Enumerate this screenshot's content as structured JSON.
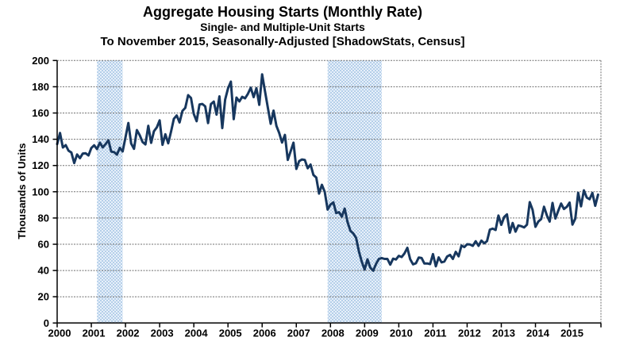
{
  "chart_data": {
    "type": "line",
    "title": "Aggregate Housing Starts (Monthly Rate)",
    "subtitle": "Single- and Multiple-Unit Starts",
    "period_note": "To November 2015, Seasonally-Adjusted [ShadowStats, Census]",
    "ylabel": "Thousands of Units",
    "ylim": [
      0,
      200
    ],
    "y_ticks": [
      0,
      20,
      40,
      60,
      80,
      100,
      120,
      140,
      160,
      180,
      200
    ],
    "x_tick_labels": [
      "2000",
      "2001",
      "2002",
      "2003",
      "2004",
      "2005",
      "2006",
      "2007",
      "2008",
      "2009",
      "2010",
      "2011",
      "2012",
      "2013",
      "2014",
      "2015"
    ],
    "frequency": "monthly",
    "x_start": "2000-01",
    "x_end": "2015-11",
    "grid": "horizontal-dotted",
    "legend": "none",
    "series": [
      {
        "name": "Aggregate Housing Starts (thousands of units, monthly rate)",
        "values": [
          136.3,
          144.8,
          133.7,
          135.5,
          131.3,
          129.9,
          121.9,
          128.4,
          125.6,
          129.1,
          129.3,
          127.7,
          133.3,
          135.4,
          132.5,
          137.4,
          133.8,
          136.3,
          139.2,
          130.6,
          130.2,
          128.3,
          133.5,
          130.7,
          141.5,
          152.4,
          136.8,
          132.7,
          147.0,
          143.1,
          137.9,
          136.1,
          150.3,
          137.3,
          146.1,
          149.0,
          154.4,
          135.8,
          143.8,
          136.9,
          145.9,
          155.6,
          158.1,
          152.8,
          161.6,
          163.9,
          173.6,
          171.4,
          159.3,
          153.8,
          166.5,
          166.9,
          165.1,
          152.3,
          166.8,
          168.7,
          158.8,
          172.7,
          148.5,
          170.2,
          178.7,
          183.9,
          155.3,
          171.8,
          168.8,
          172.3,
          171.2,
          174.6,
          179.3,
          172.1,
          178.9,
          166.2,
          189.4,
          176.6,
          164.1,
          151.8,
          161.8,
          150.2,
          144.8,
          137.5,
          143.3,
          124.3,
          130.8,
          137.4,
          117.4,
          123.3,
          124.6,
          124.2,
          117.9,
          120.7,
          112.8,
          110.8,
          98.6,
          105.3,
          99.8,
          86.4,
          90.3,
          91.9,
          83.8,
          84.4,
          81.1,
          87.2,
          76.9,
          70.3,
          68.3,
          64.8,
          54.3,
          46.7,
          40.8,
          48.5,
          42.1,
          39.8,
          45.0,
          48.8,
          49.5,
          48.8,
          48.8,
          44.5,
          49.0,
          48.4,
          51.2,
          50.3,
          53.0,
          57.3,
          48.6,
          44.7,
          45.5,
          49.9,
          49.5,
          45.3,
          45.4,
          44.9,
          52.5,
          43.2,
          50.0,
          46.2,
          46.8,
          50.7,
          51.9,
          48.8,
          54.2,
          50.8,
          59.0,
          57.8,
          60.0,
          59.8,
          58.8,
          62.3,
          58.8,
          62.8,
          60.7,
          62.4,
          71.2,
          71.9,
          70.9,
          81.9,
          74.8,
          80.8,
          82.8,
          68.8,
          76.2,
          69.6,
          74.3,
          73.8,
          72.8,
          74.9,
          92.1,
          86.2,
          73.3,
          77.3,
          79.2,
          88.6,
          82.0,
          77.3,
          91.5,
          79.6,
          85.5,
          91.0,
          86.9,
          88.5,
          91.8,
          75.0,
          79.5,
          99.2,
          88.9,
          101.1,
          95.6,
          94.3,
          99.1,
          89.3,
          97.8
        ]
      }
    ],
    "recession_bands": [
      {
        "label": "2001 recession",
        "start_month_index": 14,
        "end_month_index": 23
      },
      {
        "label": "2007-2009 recession",
        "start_month_index": 95,
        "end_month_index": 114
      }
    ],
    "colors": {
      "line": "#17375e",
      "band_light": "#e7f0fa",
      "band_dark": "#b5cfe9",
      "grid": "#707070",
      "axis": "#000000",
      "background": "#ffffff"
    }
  }
}
